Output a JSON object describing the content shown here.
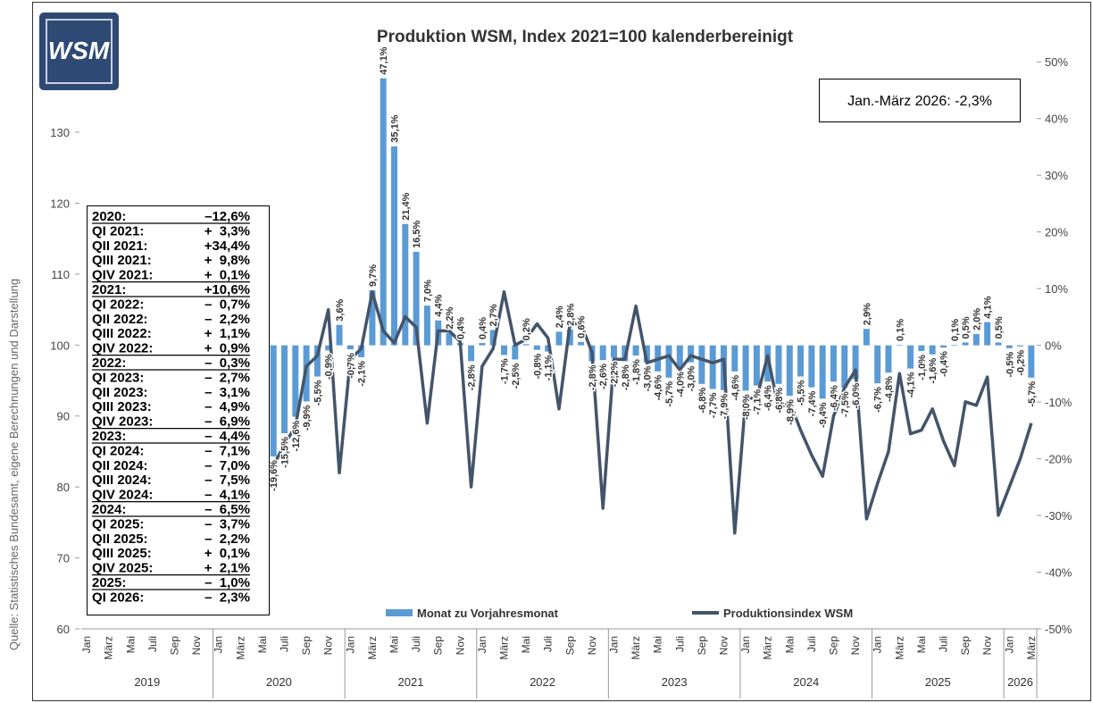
{
  "chart_data": {
    "type": "bar_line",
    "title": "Produktion WSM, Index 2021=100 kalenderbereinigt",
    "logo": "WSM",
    "source": "Quelle: Statistisches Bundesamt, eigene Berechnungen und Darstellung",
    "annotation": "Jan.-März 2026: -2,3%",
    "categories": [
      "Jan",
      null,
      "März",
      null,
      "Mai",
      null,
      "Juli",
      null,
      "Sep",
      null,
      "Nov",
      null,
      "Jan",
      null,
      "März",
      null,
      "Mai",
      null,
      "Juli",
      null,
      "Sep",
      null,
      "Nov",
      null,
      "Jan",
      null,
      "März",
      null,
      "Mai",
      null,
      "Juli",
      null,
      "Sep",
      null,
      "Nov",
      null,
      "Jan",
      null,
      "März",
      null,
      "Mai",
      null,
      "Juli",
      null,
      "Sep",
      null,
      "Nov",
      null,
      "Jan",
      null,
      "März",
      null,
      "Mai",
      null,
      "Juli",
      null,
      "Sep",
      null,
      "Nov",
      null,
      "Jan",
      null,
      "März",
      null,
      "Mai",
      null,
      "Juli",
      null,
      "Sep",
      null,
      "Nov",
      null,
      "Jan",
      null,
      "März",
      null,
      "Mai",
      null,
      "Juli",
      null,
      "Sep",
      null,
      "Nov",
      null,
      "Jan",
      null,
      "März"
    ],
    "years": [
      "2019",
      "2020",
      "2021",
      "2022",
      "2023",
      "2024",
      "2025",
      "2026"
    ],
    "ylim": [
      60,
      143.6
    ],
    "yticks": [
      60,
      70,
      80,
      90,
      100,
      110,
      120,
      130
    ],
    "y2lim": [
      -50,
      54.6
    ],
    "y2ticks": [
      {
        "value": -50,
        "label": "-50%"
      },
      {
        "value": -40,
        "label": "-40%"
      },
      {
        "value": -30,
        "label": "-30%"
      },
      {
        "value": -20,
        "label": "-20%"
      },
      {
        "value": -10,
        "label": "-10%"
      },
      {
        "value": 0,
        "label": "0%"
      },
      {
        "value": 10,
        "label": "10%"
      },
      {
        "value": 20,
        "label": "20%"
      },
      {
        "value": 30,
        "label": "30%"
      },
      {
        "value": 40,
        "label": "40%"
      },
      {
        "value": 50,
        "label": "50%"
      }
    ],
    "series": [
      {
        "name": "Monat zu Vorjahresmonat",
        "type": "bar",
        "axis": "y2",
        "color": "#5b9bd5",
        "values": [
          null,
          null,
          null,
          null,
          null,
          null,
          null,
          null,
          null,
          null,
          null,
          null,
          null,
          null,
          null,
          null,
          null,
          -19.6,
          -15.5,
          -12.6,
          -9.9,
          -5.5,
          -0.9,
          3.6,
          -0.7,
          -2.1,
          9.7,
          47.1,
          35.1,
          21.4,
          16.5,
          7.0,
          4.4,
          2.2,
          0.4,
          -2.8,
          0.4,
          2.7,
          -1.7,
          -2.5,
          0.2,
          -0.8,
          -1.1,
          2.4,
          2.8,
          0.6,
          -2.8,
          -2.6,
          -2.2,
          -2.8,
          -1.8,
          -3.0,
          -4.6,
          -5.7,
          -4.0,
          -3.0,
          -6.8,
          -7.7,
          -7.9,
          -4.6,
          -8.0,
          -7.1,
          -6.4,
          -6.8,
          -8.9,
          -5.5,
          -7.4,
          -9.4,
          -6.4,
          -7.5,
          -6.0,
          2.9,
          -6.7,
          -4.8,
          0.1,
          -4.1,
          -1.0,
          -1.6,
          -0.4,
          0.1,
          0.5,
          2.0,
          4.1,
          0.5,
          -0.5,
          -0.2,
          -5.7
        ],
        "value_labels": [
          null,
          null,
          null,
          null,
          null,
          null,
          null,
          null,
          null,
          null,
          null,
          null,
          null,
          null,
          null,
          null,
          null,
          "-19,6%",
          "-15,5%",
          "-12,6%",
          "-9,9%",
          "-5,5%",
          "-0,9%",
          "3,6%",
          "-0,7%",
          "-2,1%",
          "9,7%",
          "47,1%",
          "35,1%",
          "21,4%",
          "16,5%",
          "7,0%",
          "4,4%",
          "2,2%",
          "0,4%",
          "-2,8%",
          "0,4%",
          "2,7%",
          "-1,7%",
          "-2,5%",
          "0,2%",
          "-0,8%",
          "-1,1%",
          "2,4%",
          "2,8%",
          "0,6%",
          "-2,8%",
          "-2,6%",
          "-2,2%",
          "-2,8%",
          "-1,8%",
          "-3,0%",
          "-4,6%",
          "-5,7%",
          "-4,0%",
          "-3,0%",
          "-6,8%",
          "-7,7%",
          "-7,9%",
          "-4,6%",
          "-8,0%",
          "-7,1%",
          "-6,4%",
          "-6,8%",
          "-8,9%",
          "-5,5%",
          "-7,4%",
          "-9,4%",
          "-6,4%",
          "-7,5%",
          "-6,0%",
          "2,9%",
          "-6,7%",
          "-4,8%",
          "0,1%",
          "-4,1%",
          "-1,0%",
          "-1,6%",
          "-0,4%",
          "0,1%",
          "0,5%",
          "2,0%",
          "4,1%",
          "0,5%",
          "-0,5%",
          "-0,2%",
          "-5,7%"
        ]
      },
      {
        "name": "Produktionsindex WSM",
        "type": "line",
        "axis": "y",
        "color": "#44546a",
        "values": [
          null,
          null,
          null,
          null,
          null,
          null,
          null,
          null,
          null,
          null,
          null,
          null,
          null,
          null,
          null,
          null,
          null,
          83,
          86,
          88.5,
          97,
          98.5,
          105,
          82,
          98,
          99.5,
          107.5,
          102,
          100.3,
          104,
          102.5,
          89,
          102,
          102,
          100.5,
          80,
          97,
          99.5,
          107.5,
          100,
          100.8,
          103,
          101,
          91,
          103,
          103,
          99,
          77,
          98,
          98,
          105.5,
          97.5,
          98,
          98.5,
          96.5,
          98.5,
          98,
          97.5,
          98,
          73.5,
          92.5,
          92.5,
          98.5,
          91,
          92,
          88,
          84.5,
          81.5,
          90,
          94,
          96.5,
          75.5,
          80.5,
          85,
          96,
          87.5,
          88,
          91,
          86.5,
          83,
          92,
          91.5,
          95.5,
          76,
          80,
          84,
          89
        ]
      }
    ],
    "summary": [
      {
        "label": "2020:",
        "value": "–12,6%"
      },
      {
        "label": "QI 2021:",
        "value": "+  3,3%"
      },
      {
        "label": "QII 2021:",
        "value": "+34,4%"
      },
      {
        "label": "QIII 2021:",
        "value": "+  9,8%"
      },
      {
        "label": "QIV 2021:",
        "value": "+  0,1%"
      },
      {
        "label": "2021:",
        "value": "+10,6%"
      },
      {
        "label": "QI 2022:",
        "value": "–  0,7%"
      },
      {
        "label": "QII 2022:",
        "value": "–  2,2%"
      },
      {
        "label": "QIII 2022:",
        "value": "+  1,1%"
      },
      {
        "label": "QIV 2022:",
        "value": "+  0,9%"
      },
      {
        "label": "2022:",
        "value": "–  0,3%"
      },
      {
        "label": "QI 2023:",
        "value": "–  2,7%"
      },
      {
        "label": "QII 2023:",
        "value": "–  3,1%"
      },
      {
        "label": "QIII 2023:",
        "value": "–  4,9%"
      },
      {
        "label": "QIV 2023:",
        "value": "–  6,9%"
      },
      {
        "label": "2023:",
        "value": "–  4,4%"
      },
      {
        "label": "QI 2024:",
        "value": "–  7,1%"
      },
      {
        "label": "QII 2024:",
        "value": "–  7,0%"
      },
      {
        "label": "QIII 2024:",
        "value": "–  7,5%"
      },
      {
        "label": "QIV 2024:",
        "value": "–  4,1%"
      },
      {
        "label": "2024:",
        "value": "–  6,5%"
      },
      {
        "label": "QI 2025:",
        "value": "–  3,7%"
      },
      {
        "label": "QII 2025:",
        "value": "–  2,2%"
      },
      {
        "label": "QIII 2025:",
        "value": "+  0,1%"
      },
      {
        "label": "QIV 2025:",
        "value": "+  2,1%"
      },
      {
        "label": "2025:",
        "value": "–  1,0%"
      },
      {
        "label": "QI 2026:",
        "value": "–  2,3%"
      }
    ]
  }
}
